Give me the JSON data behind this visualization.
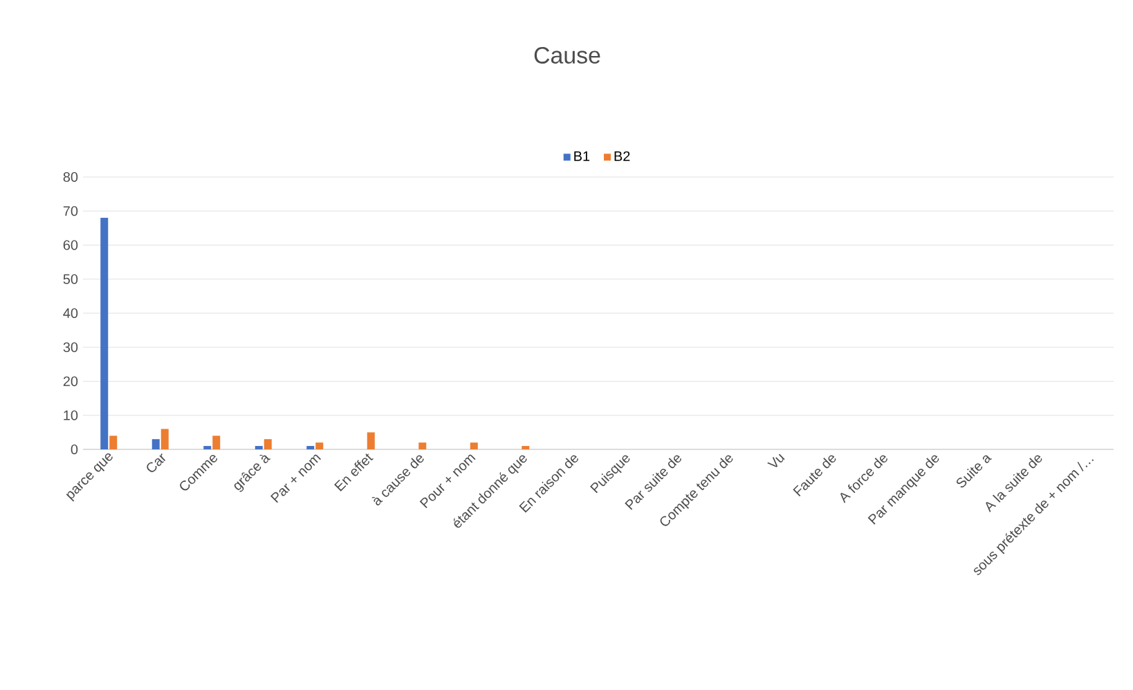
{
  "chart_data": {
    "type": "bar",
    "title": "Cause",
    "categories": [
      "parce que",
      "Car",
      "Comme",
      "grâce à",
      "Par + nom",
      "En effet",
      "à cause de",
      "Pour + nom",
      "étant donné que",
      "En raison de",
      "Puisque",
      "Par suite de",
      "Compte tenu de",
      "Vu",
      "Faute de",
      "A force de",
      "Par manque de",
      "Suite a",
      "A la suite de",
      "sous prétexte de + nom /…"
    ],
    "series": [
      {
        "name": "B1",
        "color": "#4472c4",
        "values": [
          68,
          3,
          1,
          1,
          1,
          0,
          0,
          0,
          0,
          0,
          0,
          0,
          0,
          0,
          0,
          0,
          0,
          0,
          0,
          0
        ]
      },
      {
        "name": "B2",
        "color": "#ed7d31",
        "values": [
          4,
          6,
          4,
          3,
          2,
          5,
          2,
          2,
          1,
          0,
          0,
          0,
          0,
          0,
          0,
          0,
          0,
          0,
          0,
          0
        ]
      }
    ],
    "ylim": [
      0,
      80
    ],
    "yticks": [
      0,
      10,
      20,
      30,
      40,
      50,
      60,
      70,
      80
    ],
    "grid": "y",
    "legend": "top"
  }
}
